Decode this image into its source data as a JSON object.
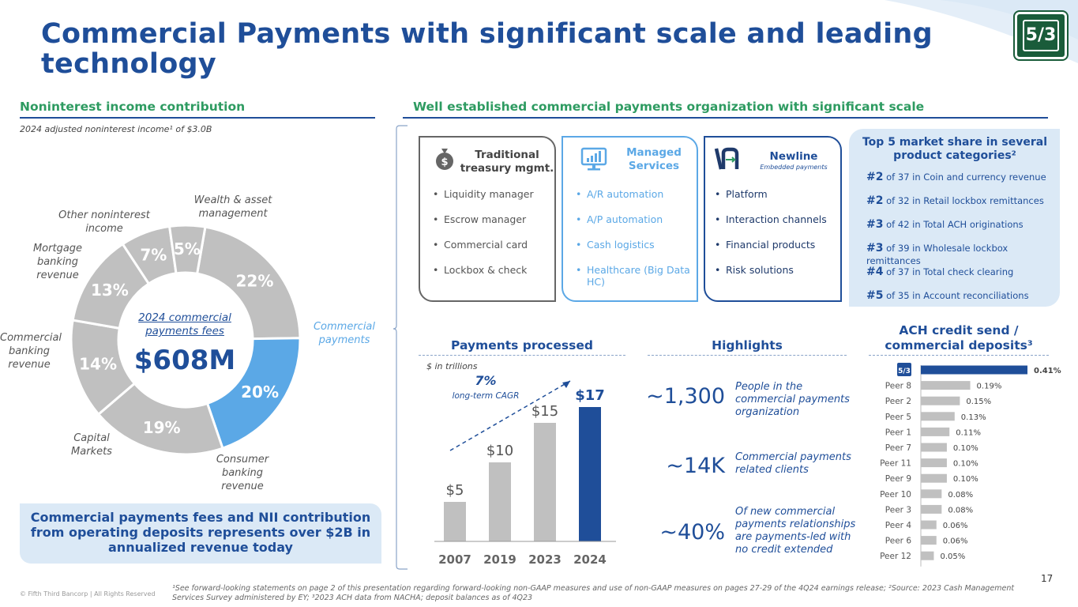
{
  "title": "Commercial Payments with significant scale and leading technology",
  "left_section": {
    "heading": "Noninterest income contribution",
    "note": "2024 adjusted noninterest income¹ of $3.0B",
    "center_label": "2024 commercial payments fees",
    "center_value": "$608M",
    "segments": [
      {
        "name": "Wealth & asset management",
        "pct_label": "22%",
        "value": 22,
        "color": "#c0c0c0"
      },
      {
        "name": "Commercial payments",
        "pct_label": "20%",
        "value": 20,
        "color": "#5ba8e6"
      },
      {
        "name": "Consumer banking revenue",
        "pct_label": "19%",
        "value": 19,
        "color": "#c0c0c0"
      },
      {
        "name": "Capital Markets",
        "pct_label": "14%",
        "value": 14,
        "color": "#c0c0c0"
      },
      {
        "name": "Commercial banking revenue",
        "pct_label": "13%",
        "value": 13,
        "color": "#c0c0c0"
      },
      {
        "name": "Mortgage banking revenue",
        "pct_label": "7%",
        "value": 7,
        "color": "#c0c0c0"
      },
      {
        "name": "Other noninterest income",
        "pct_label": "5%",
        "value": 5,
        "color": "#c0c0c0"
      }
    ],
    "callout": "Commercial payments fees and NII contribution from operating deposits represents over $2B in annualized revenue today"
  },
  "right_section": {
    "heading": "Well established commercial payments organization with significant scale",
    "cards": [
      {
        "title": "Traditional treasury mgmt.",
        "subtitle": "",
        "icon": "money-bag-icon",
        "items": [
          "Liquidity manager",
          "Escrow manager",
          "Commercial card",
          "Lockbox & check"
        ]
      },
      {
        "title": "Managed Services",
        "subtitle": "",
        "icon": "monitor-chart-icon",
        "items": [
          "A/R automation",
          "A/P automation",
          "Cash logistics",
          "Healthcare (Big Data HC)"
        ]
      },
      {
        "title": "Newline",
        "subtitle": "Embedded payments",
        "icon": "newline-logo-icon",
        "items": [
          "Platform",
          "Interaction channels",
          "Financial products",
          "Risk solutions"
        ]
      }
    ],
    "market_share": {
      "title": "Top 5 market share in several product categories²",
      "rows": [
        {
          "rank": "#2",
          "text": "of 37 in Coin and currency revenue"
        },
        {
          "rank": "#2",
          "text": "of 32 in Retail lockbox remittances"
        },
        {
          "rank": "#3",
          "text": "of 42 in Total ACH originations"
        },
        {
          "rank": "#3",
          "text": "of 39 in Wholesale lockbox remittances"
        },
        {
          "rank": "#4",
          "text": "of 37 in Total check clearing"
        },
        {
          "rank": "#5",
          "text": "of 35 in Account reconciliations"
        }
      ]
    },
    "payments": {
      "heading": "Payments processed",
      "unit_note": "$ in trillions",
      "cagr": "7%",
      "cagr_label": "long-term CAGR"
    },
    "highlights": {
      "heading": "Highlights",
      "items": [
        {
          "value": "~1,300",
          "text": "People in the commercial payments organization"
        },
        {
          "value": "~14K",
          "text": "Commercial payments related clients"
        },
        {
          "value": "~40%",
          "text": "Of new commercial payments relationships are payments-led with no credit extended"
        }
      ]
    },
    "ach": {
      "heading": "ACH credit send / commercial deposits³"
    }
  },
  "chart_data": [
    {
      "type": "bar",
      "title": "Payments processed",
      "ylabel": "$ in trillions",
      "categories": [
        "2007",
        "2019",
        "2023",
        "2024"
      ],
      "values": [
        5,
        10,
        15,
        17
      ],
      "value_labels": [
        "$5",
        "$10",
        "$15",
        "$17"
      ],
      "colors": [
        "#c0c0c0",
        "#c0c0c0",
        "#c0c0c0",
        "#1f4e99"
      ],
      "ylim": [
        0,
        17
      ]
    },
    {
      "type": "bar",
      "orientation": "horizontal",
      "title": "ACH credit send / commercial deposits³",
      "categories": [
        "Fifth Third",
        "Peer 8",
        "Peer 2",
        "Peer 5",
        "Peer 1",
        "Peer 7",
        "Peer 11",
        "Peer 9",
        "Peer 10",
        "Peer 3",
        "Peer 4",
        "Peer 6",
        "Peer 12"
      ],
      "values": [
        0.41,
        0.19,
        0.15,
        0.13,
        0.11,
        0.1,
        0.1,
        0.1,
        0.08,
        0.08,
        0.06,
        0.06,
        0.05
      ],
      "value_labels": [
        "0.41%",
        "0.19%",
        "0.15%",
        "0.13%",
        "0.11%",
        "0.10%",
        "0.10%",
        "0.10%",
        "0.08%",
        "0.08%",
        "0.06%",
        "0.06%",
        "0.05%"
      ],
      "highlight_color": "#1f4e99",
      "bar_color": "#c0c0c0"
    }
  ],
  "logo_text": "5/3",
  "footnote": "¹See forward-looking statements on page 2 of this presentation regarding forward-looking non-GAAP measures and use of non-GAAP measures on pages 27-29 of the 4Q24 earnings release; ²Source: 2023 Cash Management Services Survey administered by EY; ³2023 ACH data from NACHA; deposit balances as of 4Q23",
  "copyright": "© Fifth Third Bancorp | All Rights Reserved",
  "page_number": "17"
}
